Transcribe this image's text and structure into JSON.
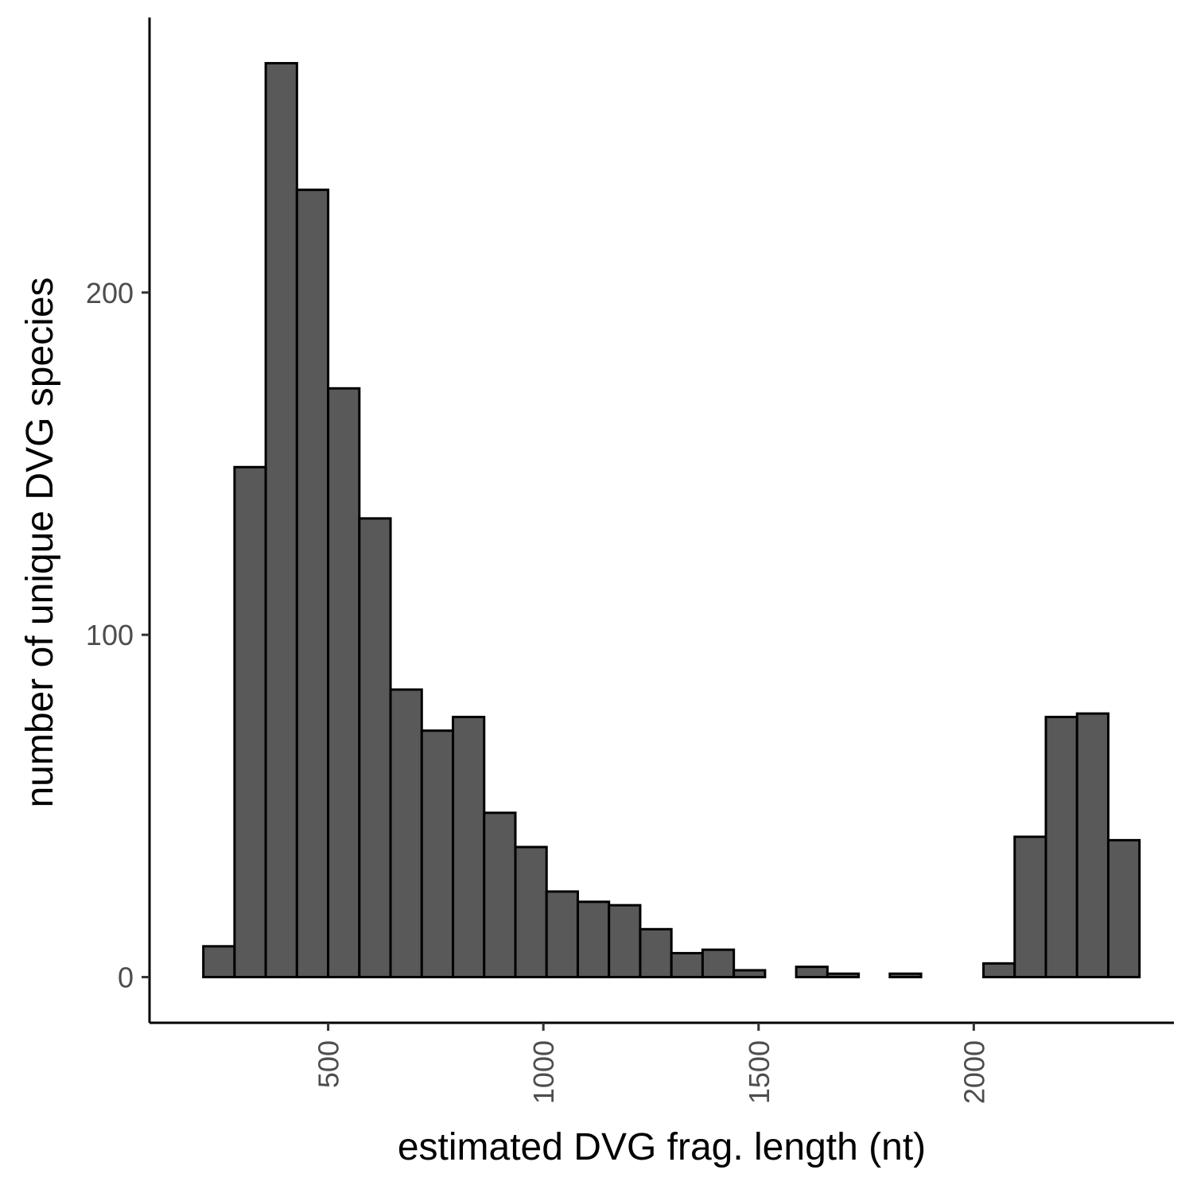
{
  "chart_data": {
    "type": "bar",
    "xlabel": "estimated DVG frag. length (nt)",
    "ylabel": "number of unique DVG species",
    "bin_width": 72.5,
    "bins": [
      {
        "x0": 210,
        "x1": 282.5,
        "count": 9
      },
      {
        "x0": 282.5,
        "x1": 355,
        "count": 149
      },
      {
        "x0": 355,
        "x1": 427.5,
        "count": 267
      },
      {
        "x0": 427.5,
        "x1": 500,
        "count": 230
      },
      {
        "x0": 500,
        "x1": 572.5,
        "count": 172
      },
      {
        "x0": 572.5,
        "x1": 645,
        "count": 134
      },
      {
        "x0": 645,
        "x1": 717.5,
        "count": 84
      },
      {
        "x0": 717.5,
        "x1": 790,
        "count": 72
      },
      {
        "x0": 790,
        "x1": 862.5,
        "count": 76
      },
      {
        "x0": 862.5,
        "x1": 935,
        "count": 48
      },
      {
        "x0": 935,
        "x1": 1007.5,
        "count": 38
      },
      {
        "x0": 1007.5,
        "x1": 1080,
        "count": 25
      },
      {
        "x0": 1080,
        "x1": 1152.5,
        "count": 22
      },
      {
        "x0": 1152.5,
        "x1": 1225,
        "count": 21
      },
      {
        "x0": 1225,
        "x1": 1297.5,
        "count": 14
      },
      {
        "x0": 1297.5,
        "x1": 1370,
        "count": 7
      },
      {
        "x0": 1370,
        "x1": 1442.5,
        "count": 8
      },
      {
        "x0": 1442.5,
        "x1": 1515,
        "count": 2
      },
      {
        "x0": 1515,
        "x1": 1587.5,
        "count": 0
      },
      {
        "x0": 1587.5,
        "x1": 1660,
        "count": 3
      },
      {
        "x0": 1660,
        "x1": 1732.5,
        "count": 1
      },
      {
        "x0": 1732.5,
        "x1": 1805,
        "count": 0
      },
      {
        "x0": 1805,
        "x1": 1877.5,
        "count": 1
      },
      {
        "x0": 1877.5,
        "x1": 1950,
        "count": 0
      },
      {
        "x0": 1950,
        "x1": 2022.5,
        "count": 0
      },
      {
        "x0": 2022.5,
        "x1": 2095,
        "count": 4
      },
      {
        "x0": 2095,
        "x1": 2167.5,
        "count": 41
      },
      {
        "x0": 2167.5,
        "x1": 2240,
        "count": 76
      },
      {
        "x0": 2240,
        "x1": 2312.5,
        "count": 77
      },
      {
        "x0": 2312.5,
        "x1": 2385,
        "count": 40
      }
    ],
    "x_ticks": [
      500,
      1000,
      1500,
      2000
    ],
    "y_ticks": [
      0,
      100,
      200
    ],
    "xlim": [
      85,
      2465
    ],
    "ylim": [
      -13.35,
      280.35
    ],
    "bar_fill": "#595959",
    "bar_stroke": "#000000",
    "grid": false,
    "legend": "none",
    "x_tick_rotation": "vertical"
  }
}
